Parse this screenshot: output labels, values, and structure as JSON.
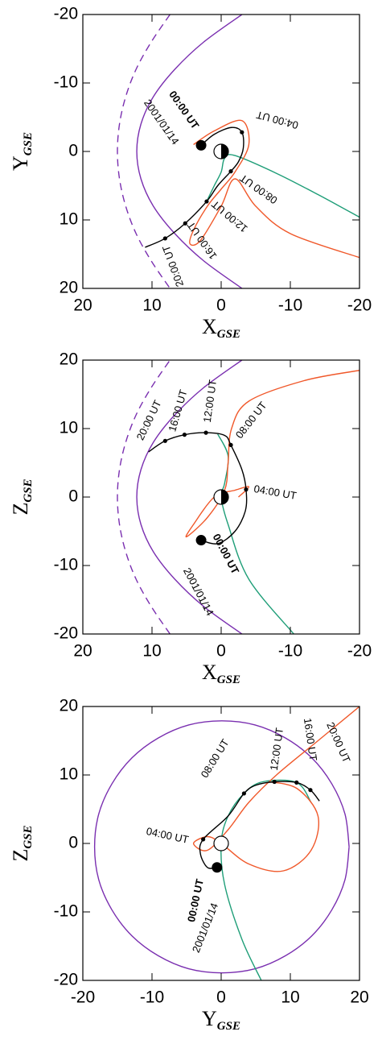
{
  "chart_data": [
    {
      "type": "line",
      "xlabel": "X",
      "xlabel_sub": "GSE",
      "ylabel": "Y",
      "ylabel_sub": "GSE",
      "xlim": [
        20,
        -20
      ],
      "xticks": [
        20,
        10,
        0,
        -10,
        -20
      ],
      "ylim": [
        20,
        -20
      ],
      "yticks": [
        -20,
        -10,
        0,
        10,
        20
      ],
      "series": [
        {
          "color": "#7a2fb0",
          "style": "solid",
          "x": [
            -3.0,
            2.5,
            6.7,
            9.8,
            11.6,
            12.2,
            11.6,
            9.8,
            6.7,
            2.5,
            -3.0
          ],
          "y": [
            -20,
            -16,
            -12,
            -8,
            -4,
            0,
            4,
            8,
            12,
            16,
            20
          ]
        },
        {
          "color": "#7a2fb0",
          "style": "dashed",
          "x": [
            7.4,
            10.1,
            12.3,
            13.8,
            14.7,
            15,
            14.7,
            13.8,
            12.3,
            10.1,
            7.4
          ],
          "y": [
            -20,
            -16,
            -12,
            -8,
            -4,
            0,
            4,
            8,
            12,
            16,
            20
          ]
        },
        {
          "color": "#1f9e78",
          "style": "solid",
          "x": [
            2.1,
            1,
            0,
            -0.5,
            -2,
            -8,
            -14,
            -20
          ],
          "y": [
            7.3,
            5,
            3,
            1,
            0.6,
            3.2,
            6.3,
            9.6
          ]
        },
        {
          "color": "#f0582a",
          "style": "solid",
          "x": [
            4,
            1,
            -3,
            -4,
            -2,
            0,
            2,
            4,
            4.5,
            3,
            0,
            -2,
            -5,
            -10,
            -20
          ],
          "y": [
            -1,
            -3,
            -4.5,
            -1,
            3,
            5.5,
            8,
            11.5,
            13.5,
            13,
            8,
            4,
            8,
            12,
            15.5
          ]
        },
        {
          "color": "#000000",
          "style": "solid",
          "x": [
            2.9,
            1,
            -1.5,
            -3,
            -3.2,
            -2.5,
            -1.4,
            0.5,
            2.1,
            5.2,
            8.1,
            11
          ],
          "y": [
            -0.9,
            -2.5,
            -3.5,
            -2.8,
            -0.5,
            1.5,
            2.9,
            5,
            7.3,
            10.5,
            12.7,
            14
          ]
        }
      ],
      "points": {
        "x": [
          2.9,
          -3.0,
          -1.4,
          2.1,
          5.2,
          8.1
        ],
        "y": [
          -0.9,
          -2.8,
          2.9,
          7.3,
          10.5,
          12.7
        ],
        "labels": [
          "00:00 UT",
          "04:00 UT",
          "08:00 UT",
          "12:00 UT",
          "16:00 UT",
          "20:00 UT"
        ]
      },
      "date": "2001/01/14"
    },
    {
      "type": "line",
      "xlabel": "X",
      "xlabel_sub": "GSE",
      "ylabel": "Z",
      "ylabel_sub": "GSE",
      "xlim": [
        20,
        -20
      ],
      "xticks": [
        20,
        10,
        0,
        -10,
        -20
      ],
      "ylim": [
        -20,
        20
      ],
      "yticks": [
        -20,
        -10,
        0,
        10,
        20
      ],
      "series": [
        {
          "color": "#7a2fb0",
          "style": "solid",
          "x": [
            -3.0,
            2.5,
            6.7,
            9.8,
            11.6,
            12.2,
            11.6,
            9.8,
            6.7,
            2.5,
            -3.0
          ],
          "y": [
            -20,
            -16,
            -12,
            -8,
            -4,
            0,
            4,
            8,
            12,
            16,
            20
          ]
        },
        {
          "color": "#7a2fb0",
          "style": "dashed",
          "x": [
            7.4,
            10.1,
            12.3,
            13.8,
            14.7,
            15,
            14.7,
            13.8,
            12.3,
            10.1,
            7.4
          ],
          "y": [
            -20,
            -16,
            -12,
            -8,
            -4,
            0,
            4,
            8,
            12,
            16,
            20
          ]
        },
        {
          "color": "#1f9e78",
          "style": "solid",
          "x": [
            0.5,
            -1,
            -0.5,
            0,
            -1,
            -4,
            -10.5
          ],
          "y": [
            9.2,
            6,
            2,
            0,
            -4,
            -12,
            -20
          ]
        },
        {
          "color": "#f0582a",
          "style": "solid",
          "x": [
            -20,
            -12,
            -4,
            -1.5,
            -1,
            -0.5,
            2,
            5,
            4,
            1,
            -2,
            -4,
            -2.5
          ],
          "y": [
            18.5,
            17,
            14,
            10,
            5,
            1,
            -3,
            -5.8,
            -4,
            0,
            1,
            1.5,
            0
          ]
        },
        {
          "color": "#000000",
          "style": "solid",
          "x": [
            10.5,
            8.1,
            5.3,
            2.2,
            -0.5,
            -1.4,
            -3,
            -3.6,
            -3.5,
            -2,
            0.5,
            2.9
          ],
          "y": [
            6.6,
            8.2,
            9.1,
            9.4,
            9,
            7.6,
            4,
            1.1,
            -2,
            -5,
            -6.8,
            -6.3
          ]
        }
      ],
      "points": {
        "x": [
          2.9,
          -3.6,
          -1.4,
          2.2,
          5.3,
          8.1
        ],
        "y": [
          -6.3,
          1.1,
          7.6,
          9.4,
          9.1,
          8.2
        ],
        "labels": [
          "00:00 UT",
          "04:00 UT",
          "08:00 UT",
          "12:00 UT",
          "16:00 UT",
          "20:00 UT"
        ]
      },
      "date": "2001/01/14"
    },
    {
      "type": "line",
      "xlabel": "Y",
      "xlabel_sub": "GSE",
      "ylabel": "Z",
      "ylabel_sub": "GSE",
      "xlim": [
        -20,
        20
      ],
      "xticks": [
        -20,
        -10,
        0,
        10,
        20
      ],
      "ylim": [
        -20,
        20
      ],
      "yticks": [
        -20,
        -10,
        0,
        10,
        20
      ],
      "series": [
        {
          "color": "#7a2fb0",
          "style": "solid",
          "x": [
            18.5,
            17.9,
            16.0,
            13.1,
            9.3,
            4.9,
            0.1,
            -4.7,
            -9.1,
            -12.9,
            -15.8,
            -17.7,
            -18.3,
            -17.7,
            -15.8,
            -12.9,
            -9.1,
            -4.7,
            0.1,
            4.9,
            9.3,
            13.1,
            16.0,
            17.9,
            18.5
          ],
          "y": [
            -0.5,
            4.3,
            8.7,
            12.5,
            15.4,
            17.3,
            17.9,
            17.3,
            15.4,
            12.5,
            8.7,
            4.3,
            -0.5,
            -5.3,
            -9.7,
            -13.5,
            -16.4,
            -18.3,
            -18.9,
            -18.3,
            -16.4,
            -13.5,
            -9.7,
            -5.3,
            -0.5
          ]
        },
        {
          "color": "#1f9e78",
          "style": "solid",
          "x": [
            5.8,
            3,
            0.5,
            0,
            1,
            3.3,
            6,
            10.9,
            13
          ],
          "y": [
            -20,
            -14,
            -6,
            0,
            4,
            7.3,
            9,
            8.9,
            6
          ]
        },
        {
          "color": "#f0582a",
          "style": "solid",
          "x": [
            20,
            14,
            8,
            4,
            1,
            -2,
            -4,
            -2,
            0,
            4,
            9,
            13,
            14,
            11,
            7
          ],
          "y": [
            20,
            15,
            10,
            6,
            2,
            -1,
            0,
            1,
            0,
            -3,
            -4,
            -1,
            4,
            8,
            9
          ]
        },
        {
          "color": "#000000",
          "style": "solid",
          "x": [
            14.2,
            12.9,
            10.9,
            7.7,
            5,
            3.3,
            1,
            -2.6,
            -3,
            -2,
            -0.6
          ],
          "y": [
            6.2,
            7.8,
            8.9,
            9.0,
            8.5,
            7.3,
            4,
            0.6,
            -1.5,
            -3.5,
            -3.5
          ]
        }
      ],
      "points": {
        "x": [
          -0.6,
          -2.6,
          3.3,
          7.7,
          10.9,
          12.9
        ],
        "y": [
          -3.5,
          0.6,
          7.3,
          9.0,
          8.9,
          7.8
        ],
        "labels": [
          "00:00 UT",
          "04:00 UT",
          "08:00 UT",
          "12:00 UT",
          "16:00 UT",
          "20:00 UT"
        ]
      },
      "date": "2001/01/14"
    }
  ]
}
